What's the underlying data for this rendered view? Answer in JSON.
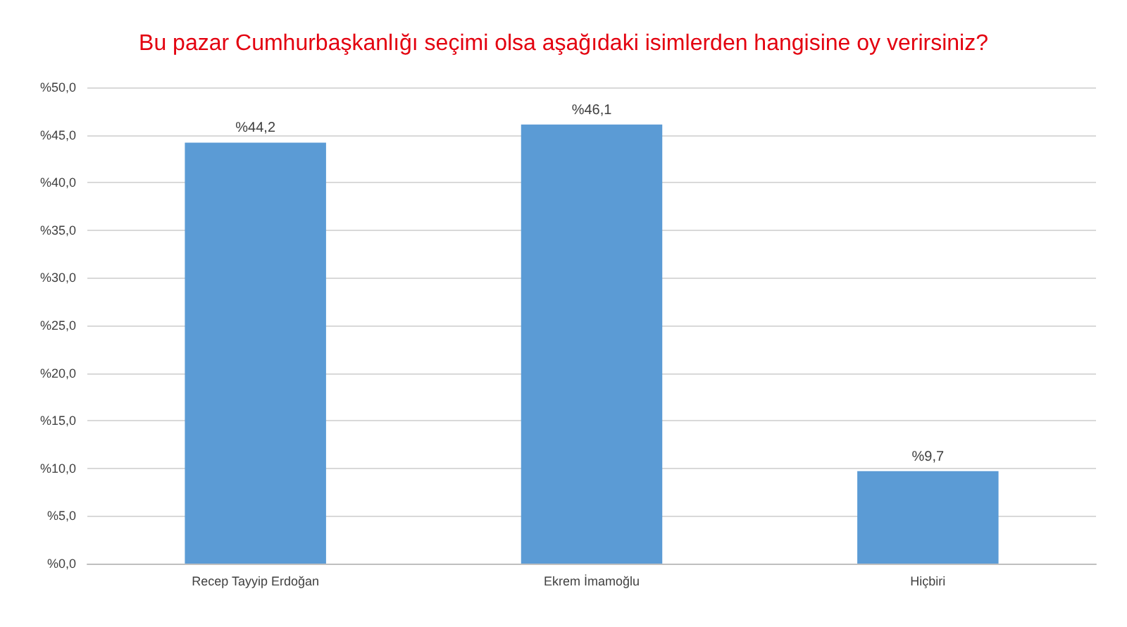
{
  "chart_data": {
    "type": "bar",
    "title": "Bu pazar Cumhurbaşkanlığı seçimi olsa aşağıdaki isimlerden hangisine oy verirsiniz?",
    "categories": [
      "Recep Tayyip Erdoğan",
      "Ekrem İmamoğlu",
      "Hiçbiri"
    ],
    "values": [
      44.2,
      46.1,
      9.7
    ],
    "value_labels": [
      "%44,2",
      "%46,1",
      "%9,7"
    ],
    "color": "#5b9bd5",
    "ylim": [
      0,
      50
    ],
    "yticks": [
      {
        "value": 0,
        "label": "%0,0"
      },
      {
        "value": 5,
        "label": "%5,0"
      },
      {
        "value": 10,
        "label": "%10,0"
      },
      {
        "value": 15,
        "label": "%15,0"
      },
      {
        "value": 20,
        "label": "%20,0"
      },
      {
        "value": 25,
        "label": "%25,0"
      },
      {
        "value": 30,
        "label": "%30,0"
      },
      {
        "value": 35,
        "label": "%35,0"
      },
      {
        "value": 40,
        "label": "%40,0"
      },
      {
        "value": 45,
        "label": "%45,0"
      },
      {
        "value": 50,
        "label": "%50,0"
      }
    ],
    "grid": true
  }
}
